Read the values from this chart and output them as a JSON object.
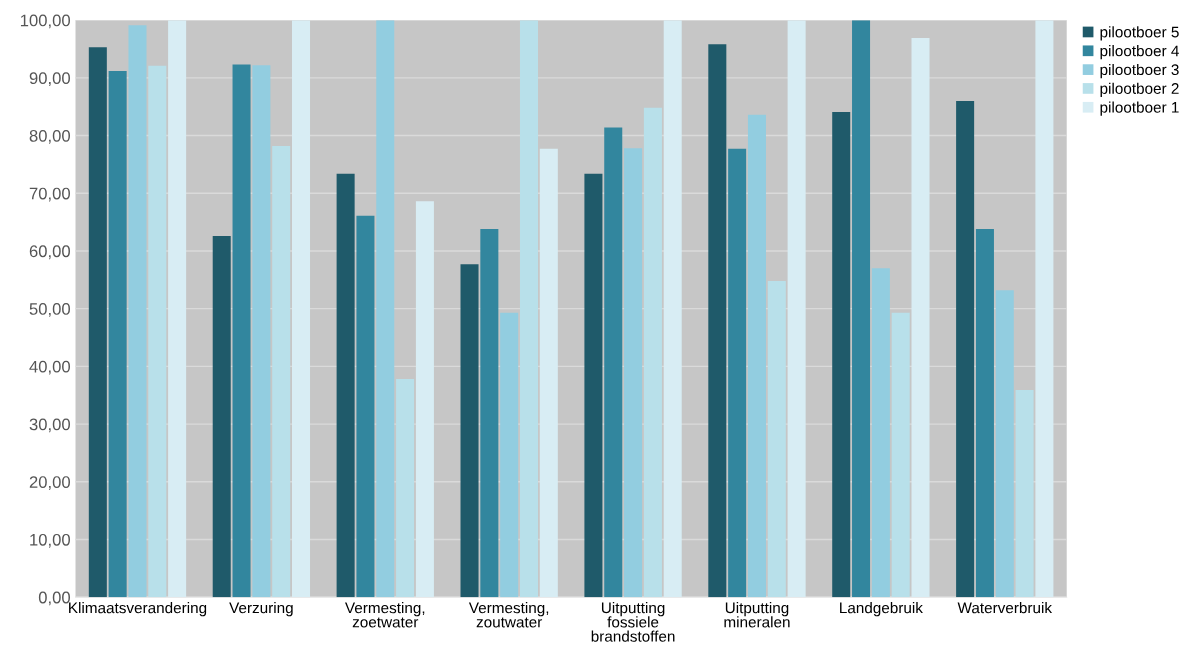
{
  "chart_data": {
    "type": "bar",
    "categories": [
      "Klimaatsverandering",
      "Verzuring",
      "Vermesting,\nzoetwater",
      "Vermesting,\nzoutwater",
      "Uitputting\nfossiele\nbrandstoffen",
      "Uitputting\nmineralen",
      "Landgebruik",
      "Waterverbruik"
    ],
    "series": [
      {
        "name": "pilootboer 5",
        "color": "#1f5a6a",
        "values": [
          95.3,
          62.6,
          73.4,
          57.7,
          73.4,
          95.8,
          84.1,
          86.0
        ]
      },
      {
        "name": "pilootboer 4",
        "color": "#32869e",
        "values": [
          91.2,
          92.3,
          66.1,
          63.8,
          81.4,
          77.7,
          100,
          63.8
        ]
      },
      {
        "name": "pilootboer 3",
        "color": "#92cde0",
        "values": [
          99.1,
          92.2,
          100,
          49.3,
          77.8,
          83.6,
          57.0,
          53.2
        ]
      },
      {
        "name": "pilootboer 2",
        "color": "#b8e0ea",
        "values": [
          92.1,
          78.2,
          37.8,
          100,
          84.8,
          54.8,
          49.3,
          35.9
        ]
      },
      {
        "name": "pilootboer 1",
        "color": "#d8edf4",
        "values": [
          100,
          100,
          68.6,
          77.7,
          100,
          100,
          96.9,
          100
        ]
      }
    ],
    "ylim": [
      0,
      100
    ],
    "yticks": [
      {
        "value": 0,
        "label": "0,00"
      },
      {
        "value": 10,
        "label": "10,00"
      },
      {
        "value": 20,
        "label": "20,00"
      },
      {
        "value": 30,
        "label": "30,00"
      },
      {
        "value": 40,
        "label": "40,00"
      },
      {
        "value": 50,
        "label": "50,00"
      },
      {
        "value": 60,
        "label": "60,00"
      },
      {
        "value": 70,
        "label": "70,00"
      },
      {
        "value": 80,
        "label": "80,00"
      },
      {
        "value": 90,
        "label": "90,00"
      },
      {
        "value": 100,
        "label": "100,00"
      }
    ],
    "grid": "y",
    "legend": "right"
  }
}
